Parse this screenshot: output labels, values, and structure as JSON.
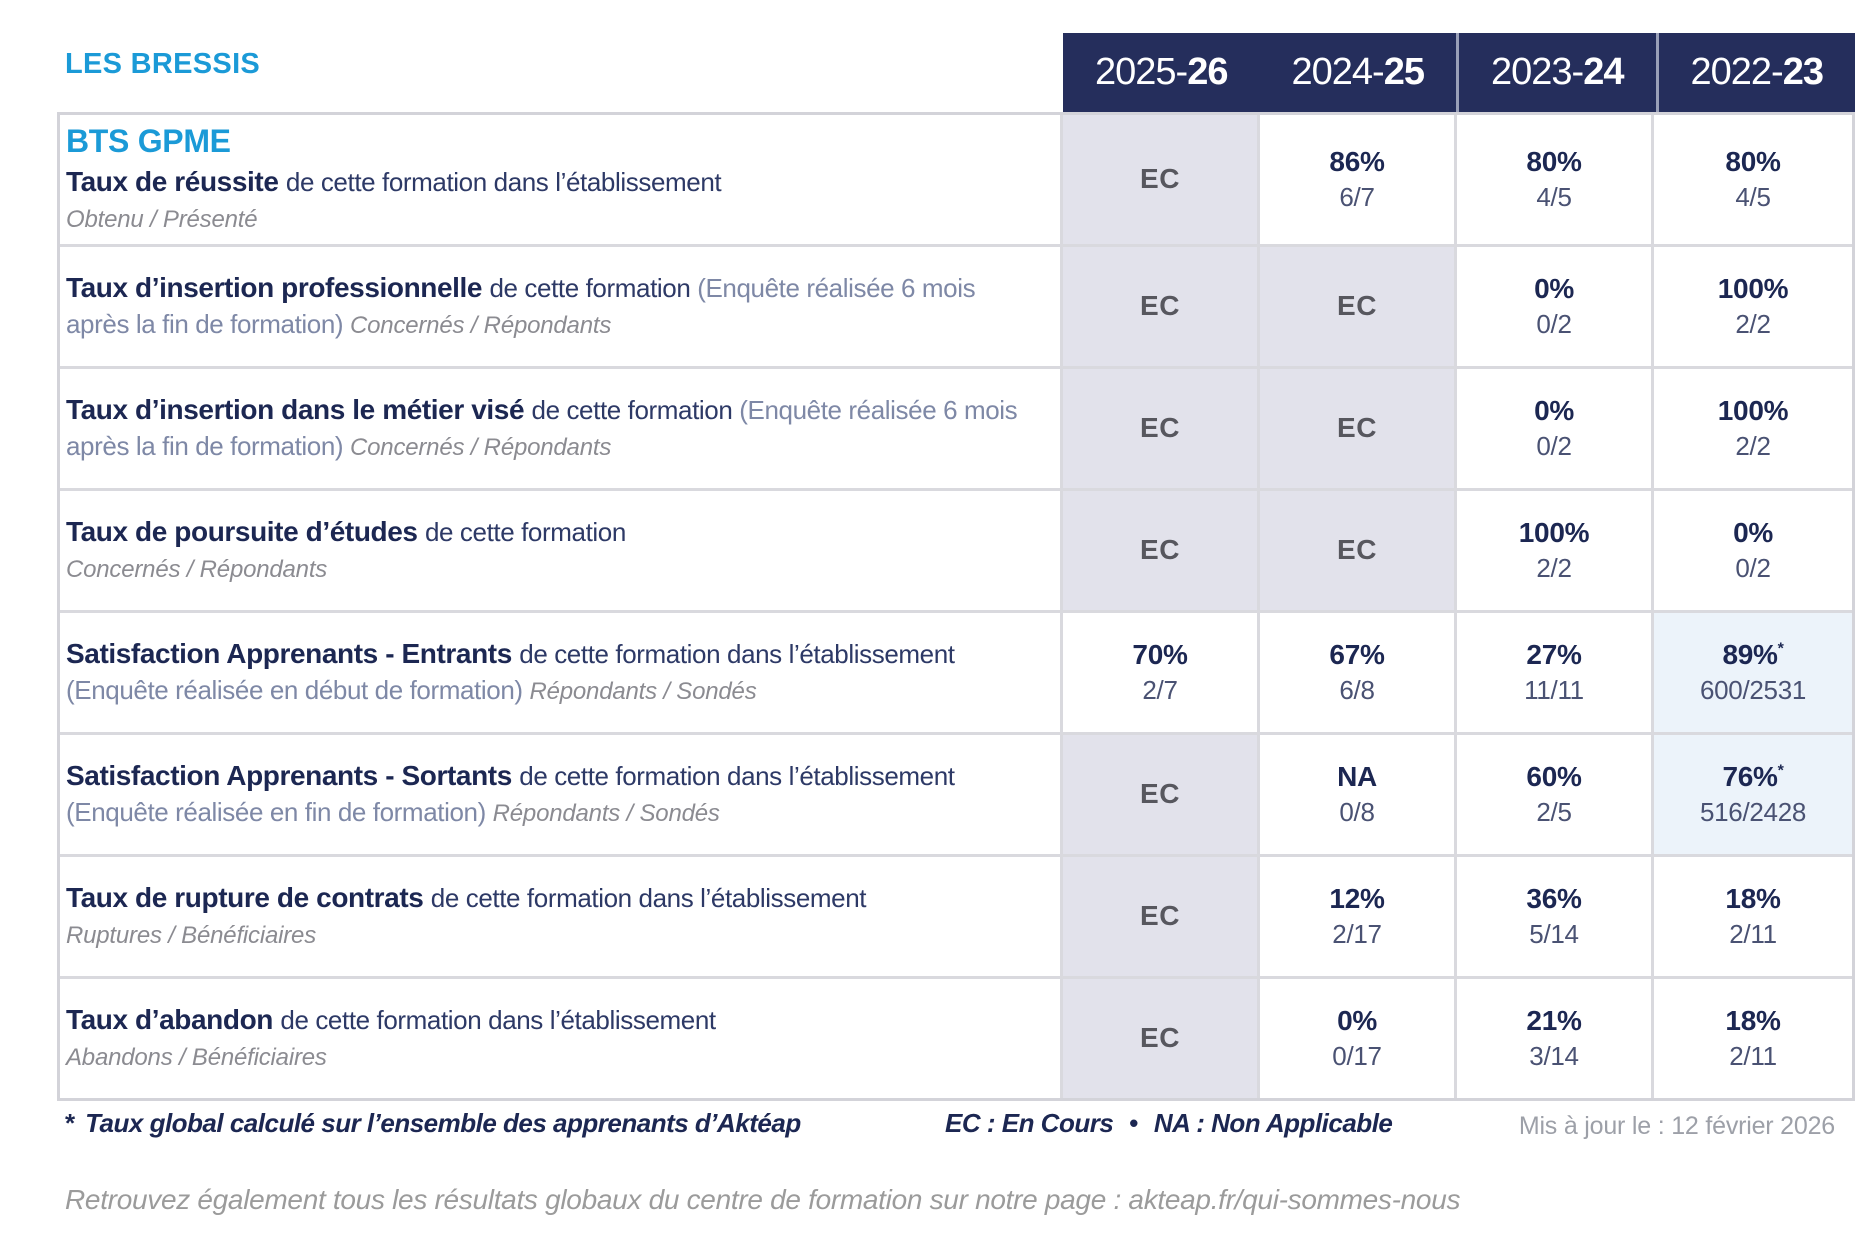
{
  "page": {
    "site_name": "LES BRESSIS"
  },
  "table": {
    "year_columns": [
      {
        "prefix": "2025-",
        "suffix": "26"
      },
      {
        "prefix": "2024-",
        "suffix": "25"
      },
      {
        "prefix": "2023-",
        "suffix": "24"
      },
      {
        "prefix": "2022-",
        "suffix": "23"
      }
    ],
    "rows": [
      {
        "program": "BTS GPME",
        "title": "Taux de réussite",
        "description": "de cette formation dans l’établissement",
        "note": "",
        "legend": "Obtenu / Présenté",
        "legend_own_line": true,
        "cells": [
          {
            "type": "pending",
            "label": "EC"
          },
          {
            "type": "value",
            "pct": "86%",
            "frac": "6/7"
          },
          {
            "type": "value",
            "pct": "80%",
            "frac": "4/5"
          },
          {
            "type": "value",
            "pct": "80%",
            "frac": "4/5"
          }
        ]
      },
      {
        "title": "Taux d’insertion professionnelle",
        "description": "de cette formation",
        "note": "(Enquête réalisée 6 mois après la fin de formation)",
        "legend": "Concernés / Répondants",
        "legend_own_line": false,
        "cells": [
          {
            "type": "pending",
            "label": "EC"
          },
          {
            "type": "pending",
            "label": "EC"
          },
          {
            "type": "value",
            "pct": "0%",
            "frac": "0/2"
          },
          {
            "type": "value",
            "pct": "100%",
            "frac": "2/2"
          }
        ]
      },
      {
        "title": "Taux d’insertion dans le métier visé",
        "description": "de cette formation",
        "note": "(Enquête réalisée 6 mois après la fin de formation)",
        "legend": "Concernés / Répondants",
        "legend_own_line": false,
        "cells": [
          {
            "type": "pending",
            "label": "EC"
          },
          {
            "type": "pending",
            "label": "EC"
          },
          {
            "type": "value",
            "pct": "0%",
            "frac": "0/2"
          },
          {
            "type": "value",
            "pct": "100%",
            "frac": "2/2"
          }
        ]
      },
      {
        "title": "Taux de poursuite d’études",
        "description": "de cette formation",
        "note": "",
        "legend": "Concernés / Répondants",
        "legend_own_line": true,
        "cells": [
          {
            "type": "pending",
            "label": "EC"
          },
          {
            "type": "pending",
            "label": "EC"
          },
          {
            "type": "value",
            "pct": "100%",
            "frac": "2/2"
          },
          {
            "type": "value",
            "pct": "0%",
            "frac": "0/2"
          }
        ]
      },
      {
        "title": "Satisfaction Apprenants - Entrants",
        "description": "de cette formation dans l’établissement",
        "note": "(Enquête réalisée en début de formation)",
        "legend": "Répondants / Sondés",
        "legend_own_line": false,
        "cells": [
          {
            "type": "value",
            "pct": "70%",
            "frac": "2/7"
          },
          {
            "type": "value",
            "pct": "67%",
            "frac": "6/8"
          },
          {
            "type": "value",
            "pct": "27%",
            "frac": "11/11"
          },
          {
            "type": "value",
            "pct": "89%",
            "frac": "600/2531",
            "starred": true
          }
        ]
      },
      {
        "title": "Satisfaction Apprenants - Sortants",
        "description": "de cette formation dans l’établissement",
        "note": "(Enquête réalisée en fin de formation)",
        "legend": "Répondants / Sondés",
        "legend_own_line": false,
        "cells": [
          {
            "type": "pending",
            "label": "EC"
          },
          {
            "type": "value",
            "pct": "NA",
            "frac": "0/8"
          },
          {
            "type": "value",
            "pct": "60%",
            "frac": "2/5"
          },
          {
            "type": "value",
            "pct": "76%",
            "frac": "516/2428",
            "starred": true
          }
        ]
      },
      {
        "title": "Taux de rupture de contrats",
        "description": "de cette formation dans l’établissement",
        "note": "",
        "legend": "Ruptures / Bénéficiaires",
        "legend_own_line": true,
        "cells": [
          {
            "type": "pending",
            "label": "EC"
          },
          {
            "type": "value",
            "pct": "12%",
            "frac": "2/17"
          },
          {
            "type": "value",
            "pct": "36%",
            "frac": "5/14"
          },
          {
            "type": "value",
            "pct": "18%",
            "frac": "2/11"
          }
        ]
      },
      {
        "title": "Taux d’abandon",
        "description": "de cette formation dans l’établissement",
        "note": "",
        "legend": "Abandons / Bénéficiaires",
        "legend_own_line": true,
        "cells": [
          {
            "type": "pending",
            "label": "EC"
          },
          {
            "type": "value",
            "pct": "0%",
            "frac": "0/17"
          },
          {
            "type": "value",
            "pct": "21%",
            "frac": "3/14"
          },
          {
            "type": "value",
            "pct": "18%",
            "frac": "2/11"
          }
        ]
      }
    ]
  },
  "footnotes": {
    "star_symbol": "*",
    "star_text": "Taux global calculé sur l’ensemble des apprenants d’Aktéap",
    "abbreviations": {
      "ec": "EC : En Cours",
      "separator": "•",
      "na": "NA : Non Applicable"
    },
    "updated": "Mis à jour le : 12 février 2026",
    "global_results_prefix": "Retrouvez également tous les résultats globaux du centre de formation sur notre page : ",
    "global_results_url": "akteap.fr/qui-sommes-nous"
  },
  "colors": {
    "accent": "#1B9AD7",
    "header_bg": "#252E5C",
    "navy_text": "#1C2752",
    "pending_bg": "#E2E2EB",
    "starred_bg": "#ECF3FA",
    "grid_line": "#D9D9DE",
    "muted_text": "#8B8B91"
  }
}
